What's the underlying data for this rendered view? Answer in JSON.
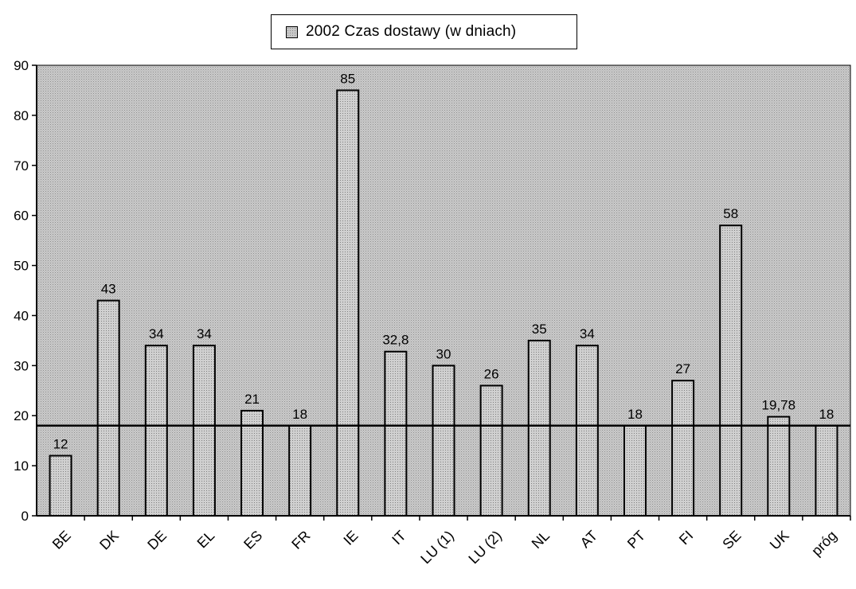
{
  "chart_data": {
    "type": "bar",
    "categories": [
      "BE",
      "DK",
      "DE",
      "EL",
      "ES",
      "FR",
      "IE",
      "IT",
      "LU (1)",
      "LU (2)",
      "NL",
      "AT",
      "PT",
      "FI",
      "SE",
      "UK",
      "próg"
    ],
    "series": [
      {
        "name": "2002 Czas dostawy (w dniach)",
        "values": [
          12,
          43,
          34,
          34,
          21,
          18,
          85,
          32.8,
          30,
          26,
          35,
          34,
          18,
          27,
          58,
          19.78,
          18
        ],
        "data_labels": [
          "12",
          "43",
          "34",
          "34",
          "21",
          "18",
          "85",
          "32,8",
          "30",
          "26",
          "35",
          "34",
          "18",
          "27",
          "58",
          "19,78",
          "18"
        ]
      }
    ],
    "threshold_line": 18,
    "ylim": [
      0,
      90
    ],
    "yticks": [
      0,
      10,
      20,
      30,
      40,
      50,
      60,
      70,
      80,
      90
    ],
    "title": "",
    "xlabel": "",
    "ylabel": "",
    "grid": false,
    "legend_position": "top-center",
    "colors": {
      "plot_background": "#c4c4c4",
      "bar_fill": "#c9c9c9",
      "stroke": "#000000"
    }
  }
}
